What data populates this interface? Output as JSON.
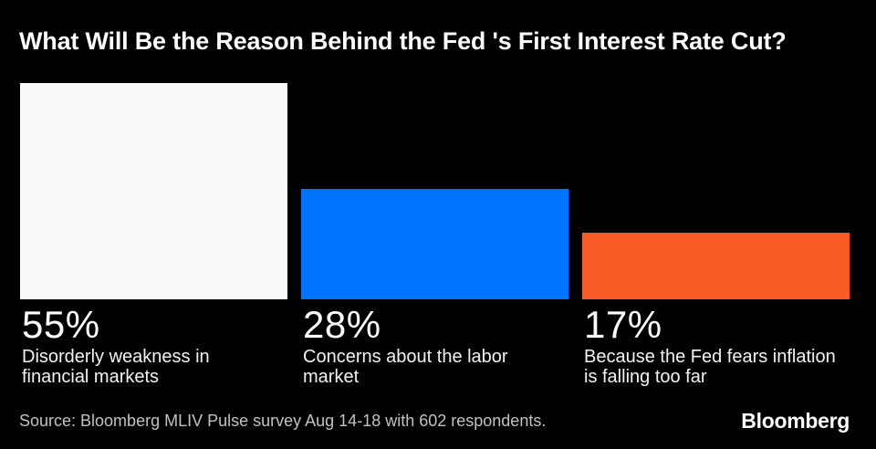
{
  "title": "What Will Be the Reason Behind the Fed 's First Interest Rate Cut?",
  "chart_data": {
    "type": "bar",
    "title": "What Will Be the Reason Behind the Fed 's First Interest Rate Cut?",
    "categories": [
      "Disorderly weakness in financial markets",
      "Concerns about the labor market",
      "Because the Fed fears inflation is falling too far"
    ],
    "values": [
      55,
      28,
      17
    ],
    "unit": "%",
    "value_labels": [
      "55%",
      "28%",
      "17%"
    ],
    "colors": [
      "#fafafa",
      "#0073ff",
      "#f95b27"
    ],
    "ylim": [
      0,
      55
    ],
    "grid": false,
    "legend": false,
    "background": "#000000",
    "text_color": "#ffffff"
  },
  "bars": [
    {
      "value_label": "55%",
      "desc_lines": [
        "Disorderly weakness in",
        "financial markets"
      ]
    },
    {
      "value_label": "28%",
      "desc_lines": [
        "Concerns about the labor",
        "market"
      ]
    },
    {
      "value_label": "17%",
      "desc_lines": [
        "Because the Fed fears inflation",
        "is falling too far"
      ]
    }
  ],
  "footer": {
    "source": "Source: Bloomberg MLIV Pulse survey Aug 14-18 with 602 respondents.",
    "logo": "Bloomberg"
  }
}
